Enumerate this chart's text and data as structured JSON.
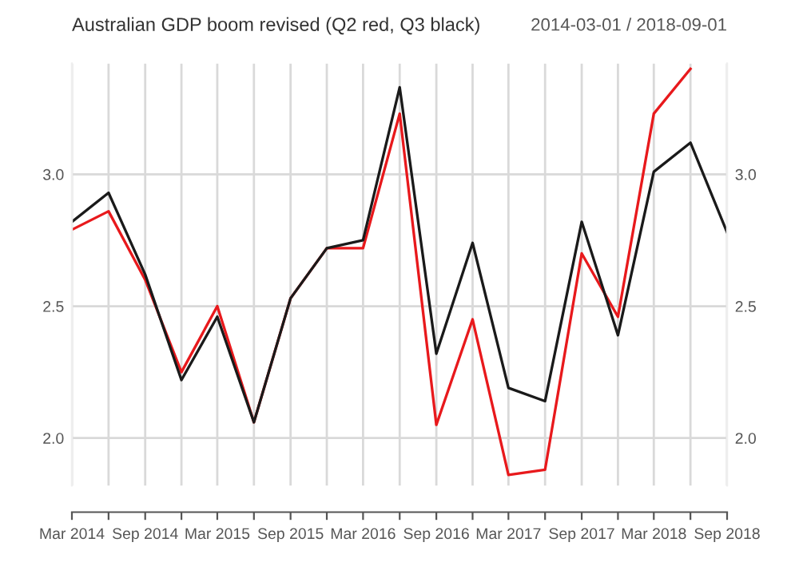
{
  "chart_data": {
    "type": "line",
    "title": "Australian GDP boom revised (Q2 red, Q3 black)",
    "subtitle": "2014-03-01 / 2018-09-01",
    "x": [
      "2014-03",
      "2014-06",
      "2014-09",
      "2014-12",
      "2015-03",
      "2015-06",
      "2015-09",
      "2015-12",
      "2016-03",
      "2016-06",
      "2016-09",
      "2016-12",
      "2017-03",
      "2017-06",
      "2017-09",
      "2017-12",
      "2018-03",
      "2018-06",
      "2018-09"
    ],
    "series": [
      {
        "color": "#e8191c",
        "values": [
          2.79,
          2.86,
          2.6,
          2.25,
          2.5,
          2.06,
          2.53,
          2.72,
          2.72,
          3.23,
          2.05,
          2.45,
          1.86,
          1.88,
          2.7,
          2.46,
          3.23,
          3.4,
          null
        ]
      },
      {
        "color": "#1a1a1a",
        "values": [
          2.82,
          2.93,
          2.62,
          2.22,
          2.46,
          2.06,
          2.53,
          2.72,
          2.75,
          3.33,
          2.32,
          2.74,
          2.19,
          2.14,
          2.82,
          2.39,
          3.01,
          3.12,
          2.78
        ]
      }
    ],
    "ylim": [
      1.82,
      3.42
    ],
    "yticks": [
      {
        "value": 2,
        "label": "2.0"
      },
      {
        "value": 2.5,
        "label": "2.5"
      },
      {
        "value": 3,
        "label": "3.0"
      }
    ],
    "y2lim": [
      1.82,
      3.42
    ],
    "y2ticks": [
      {
        "value": 2,
        "label": "2.0"
      },
      {
        "value": 2.5,
        "label": "2.5"
      },
      {
        "value": 3,
        "label": "3.0"
      }
    ],
    "xlim": [
      "2014-03",
      "2018-09"
    ],
    "xticks": [
      {
        "value": "2014-03",
        "label": "Mar 2014"
      },
      {
        "value": "2014-06",
        "label": null
      },
      {
        "value": "2014-09",
        "label": "Sep 2014"
      },
      {
        "value": "2014-12",
        "label": null
      },
      {
        "value": "2015-03",
        "label": "Mar 2015"
      },
      {
        "value": "2015-06",
        "label": null
      },
      {
        "value": "2015-09",
        "label": "Sep 2015"
      },
      {
        "value": "2015-12",
        "label": null
      },
      {
        "value": "2016-03",
        "label": "Mar 2016"
      },
      {
        "value": "2016-06",
        "label": null
      },
      {
        "value": "2016-09",
        "label": "Sep 2016"
      },
      {
        "value": "2016-12",
        "label": null
      },
      {
        "value": "2017-03",
        "label": "Mar 2017"
      },
      {
        "value": "2017-06",
        "label": null
      },
      {
        "value": "2017-09",
        "label": "Sep 2017"
      },
      {
        "value": "2017-12",
        "label": null
      },
      {
        "value": "2018-03",
        "label": "Mar 2018"
      },
      {
        "value": "2018-06",
        "label": null
      },
      {
        "value": "2018-09",
        "label": "Sep 2018"
      }
    ],
    "grid": true,
    "marker": "none",
    "line_style": "solid"
  }
}
